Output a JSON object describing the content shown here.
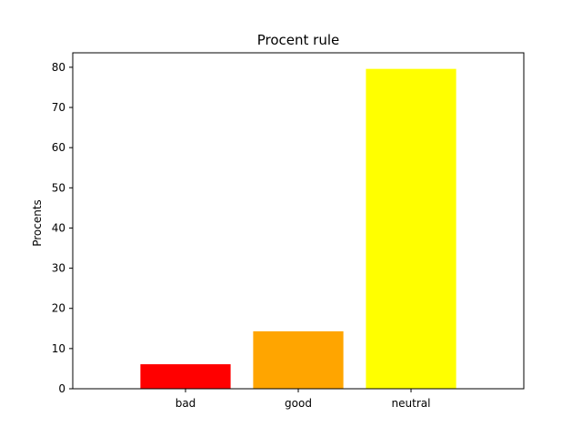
{
  "chart_data": {
    "type": "bar",
    "title": "Procent rule",
    "xlabel": "",
    "ylabel": "Procents",
    "categories": [
      "bad",
      "good",
      "neutral"
    ],
    "values": [
      6.1,
      14.3,
      79.6
    ],
    "colors": [
      "#ff0000",
      "#ffa500",
      "#ffff00"
    ],
    "ylim": [
      0,
      83.6
    ],
    "yticks": [
      0,
      10,
      20,
      30,
      40,
      50,
      60,
      70,
      80
    ],
    "grid": false,
    "legend": "none"
  }
}
